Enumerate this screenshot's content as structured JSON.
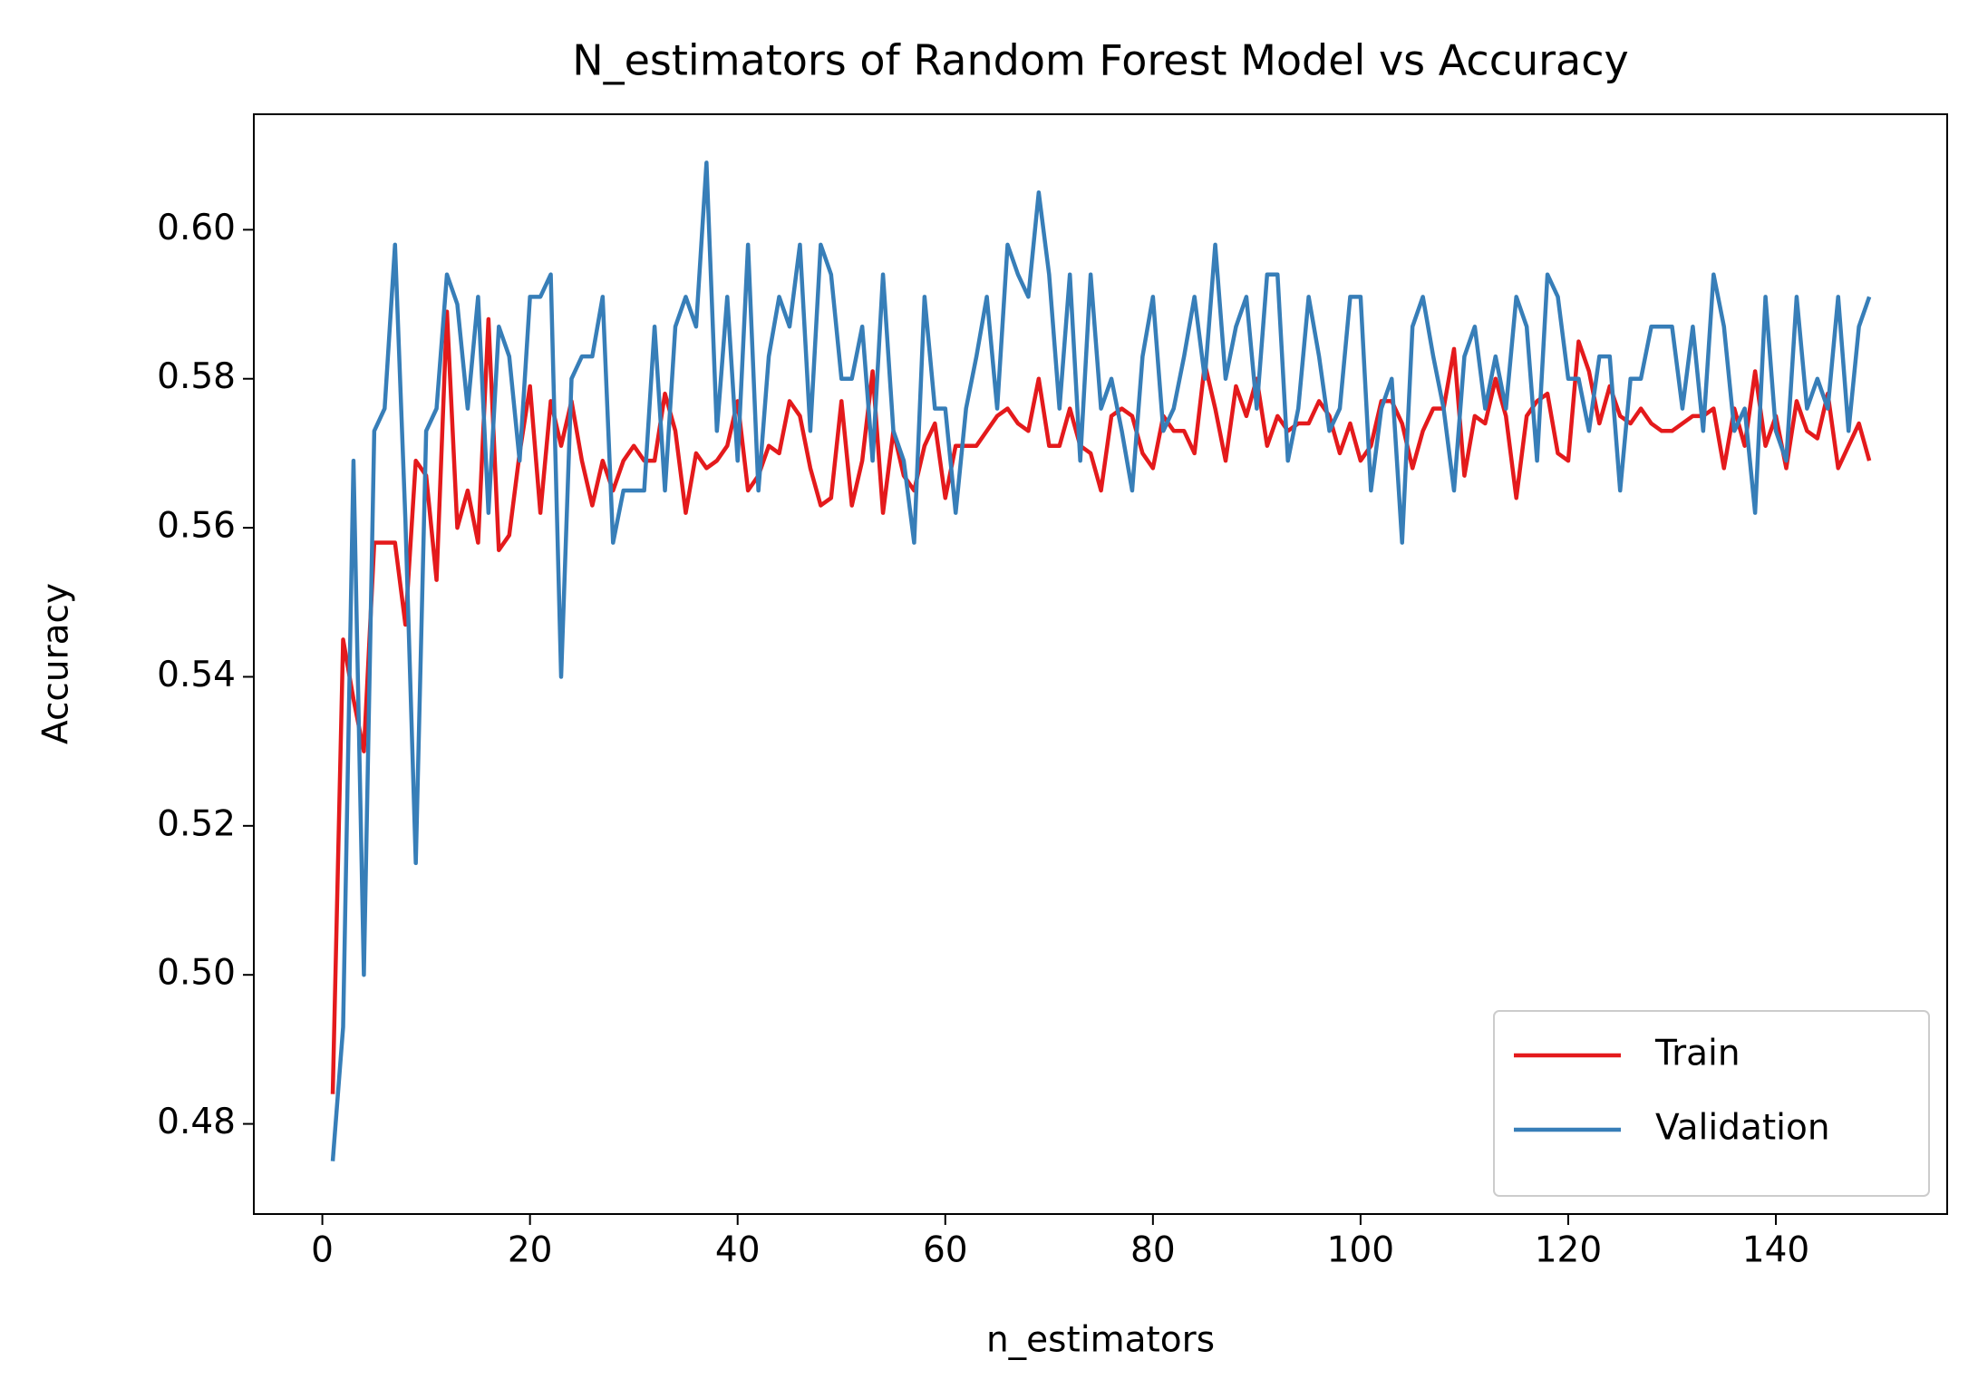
{
  "chart_data": {
    "type": "line",
    "title": "N_estimators of Random Forest Model vs Accuracy",
    "x_label": "n_estimators",
    "y_label": "Accuracy",
    "x": [
      1,
      2,
      3,
      4,
      5,
      6,
      7,
      8,
      9,
      10,
      11,
      12,
      13,
      14,
      15,
      16,
      17,
      18,
      19,
      20,
      21,
      22,
      23,
      24,
      25,
      26,
      27,
      28,
      29,
      30,
      31,
      32,
      33,
      34,
      35,
      36,
      37,
      38,
      39,
      40,
      41,
      42,
      43,
      44,
      45,
      46,
      47,
      48,
      49,
      50,
      51,
      52,
      53,
      54,
      55,
      56,
      57,
      58,
      59,
      60,
      61,
      62,
      63,
      64,
      65,
      66,
      67,
      68,
      69,
      70,
      71,
      72,
      73,
      74,
      75,
      76,
      77,
      78,
      79,
      80,
      81,
      82,
      83,
      84,
      85,
      86,
      87,
      88,
      89,
      90,
      91,
      92,
      93,
      94,
      95,
      96,
      97,
      98,
      99,
      100,
      101,
      102,
      103,
      104,
      105,
      106,
      107,
      108,
      109,
      110,
      111,
      112,
      113,
      114,
      115,
      116,
      117,
      118,
      119,
      120,
      121,
      122,
      123,
      124,
      125,
      126,
      127,
      128,
      129,
      130,
      131,
      132,
      133,
      134,
      135,
      136,
      137,
      138,
      139,
      140,
      141,
      142,
      143,
      144,
      145,
      146,
      147,
      148,
      149
    ],
    "series": [
      {
        "name": "Train",
        "color": "#e41a1c",
        "values": [
          0.484,
          0.545,
          0.537,
          0.53,
          0.558,
          0.558,
          0.558,
          0.547,
          0.569,
          0.567,
          0.553,
          0.589,
          0.56,
          0.565,
          0.558,
          0.588,
          0.557,
          0.559,
          0.57,
          0.579,
          0.562,
          0.577,
          0.571,
          0.577,
          0.569,
          0.563,
          0.569,
          0.565,
          0.569,
          0.571,
          0.569,
          0.569,
          0.578,
          0.573,
          0.562,
          0.57,
          0.568,
          0.569,
          0.571,
          0.577,
          0.565,
          0.567,
          0.571,
          0.57,
          0.577,
          0.575,
          0.568,
          0.563,
          0.564,
          0.577,
          0.563,
          0.569,
          0.581,
          0.562,
          0.573,
          0.567,
          0.565,
          0.571,
          0.574,
          0.564,
          0.571,
          0.571,
          0.571,
          0.573,
          0.575,
          0.576,
          0.574,
          0.573,
          0.58,
          0.571,
          0.571,
          0.576,
          0.571,
          0.57,
          0.565,
          0.575,
          0.576,
          0.575,
          0.57,
          0.568,
          0.575,
          0.573,
          0.573,
          0.57,
          0.582,
          0.576,
          0.569,
          0.579,
          0.575,
          0.58,
          0.571,
          0.575,
          0.573,
          0.574,
          0.574,
          0.577,
          0.575,
          0.57,
          0.574,
          0.569,
          0.571,
          0.577,
          0.577,
          0.574,
          0.568,
          0.573,
          0.576,
          0.576,
          0.584,
          0.567,
          0.575,
          0.574,
          0.58,
          0.575,
          0.564,
          0.575,
          0.577,
          0.578,
          0.57,
          0.569,
          0.585,
          0.581,
          0.574,
          0.579,
          0.575,
          0.574,
          0.576,
          0.574,
          0.573,
          0.573,
          0.574,
          0.575,
          0.575,
          0.576,
          0.568,
          0.576,
          0.571,
          0.581,
          0.571,
          0.575,
          0.568,
          0.577,
          0.573,
          0.572,
          0.578,
          0.568,
          0.571,
          0.574,
          0.569
        ]
      },
      {
        "name": "Validation",
        "color": "#377eb8",
        "values": [
          0.475,
          0.493,
          0.569,
          0.5,
          0.573,
          0.576,
          0.598,
          0.561,
          0.515,
          0.573,
          0.576,
          0.594,
          0.59,
          0.576,
          0.591,
          0.562,
          0.587,
          0.583,
          0.569,
          0.591,
          0.591,
          0.594,
          0.54,
          0.58,
          0.583,
          0.583,
          0.591,
          0.558,
          0.565,
          0.565,
          0.565,
          0.587,
          0.565,
          0.587,
          0.591,
          0.587,
          0.609,
          0.573,
          0.591,
          0.569,
          0.598,
          0.565,
          0.583,
          0.591,
          0.587,
          0.598,
          0.573,
          0.598,
          0.594,
          0.58,
          0.58,
          0.587,
          0.569,
          0.594,
          0.573,
          0.569,
          0.558,
          0.591,
          0.576,
          0.576,
          0.562,
          0.576,
          0.583,
          0.591,
          0.576,
          0.598,
          0.594,
          0.591,
          0.605,
          0.594,
          0.576,
          0.594,
          0.569,
          0.594,
          0.576,
          0.58,
          0.573,
          0.565,
          0.583,
          0.591,
          0.573,
          0.576,
          0.583,
          0.591,
          0.58,
          0.598,
          0.58,
          0.587,
          0.591,
          0.576,
          0.594,
          0.594,
          0.569,
          0.576,
          0.591,
          0.583,
          0.573,
          0.576,
          0.591,
          0.591,
          0.565,
          0.576,
          0.58,
          0.558,
          0.587,
          0.591,
          0.583,
          0.576,
          0.565,
          0.583,
          0.587,
          0.576,
          0.583,
          0.576,
          0.591,
          0.587,
          0.569,
          0.594,
          0.591,
          0.58,
          0.58,
          0.573,
          0.583,
          0.583,
          0.565,
          0.58,
          0.58,
          0.587,
          0.587,
          0.587,
          0.576,
          0.587,
          0.573,
          0.594,
          0.587,
          0.573,
          0.576,
          0.562,
          0.591,
          0.573,
          0.569,
          0.591,
          0.576,
          0.58,
          0.576,
          0.591,
          0.573,
          0.587,
          0.591
        ]
      }
    ],
    "xlim": [
      -6.6,
      156.5
    ],
    "ylim": [
      0.4679,
      0.6155
    ],
    "xticks": [
      0,
      20,
      40,
      60,
      80,
      100,
      120,
      140
    ],
    "yticks": [
      0.48,
      {
        "value": 0.5,
        "label": "0.50"
      },
      0.52,
      0.54,
      0.56,
      0.58,
      {
        "value": 0.6,
        "label": "0.60"
      }
    ],
    "grid": false,
    "legend": "lower right"
  }
}
